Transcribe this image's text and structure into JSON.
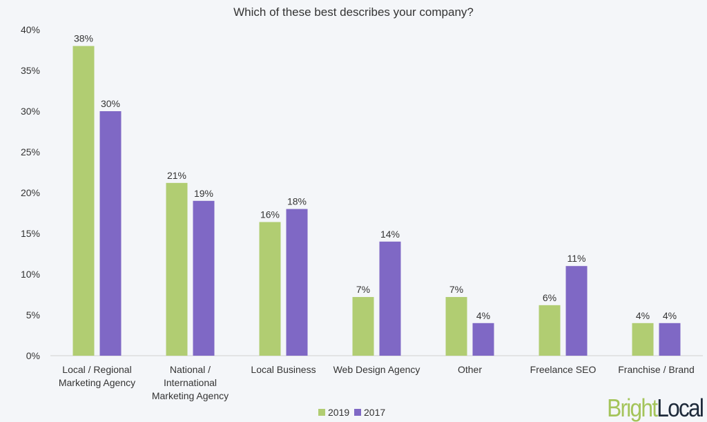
{
  "chart_data": {
    "type": "bar",
    "title": "Which of these best describes your company?",
    "categories": [
      [
        "Local / Regional",
        "Marketing Agency"
      ],
      [
        "National /",
        "International",
        "Marketing Agency"
      ],
      [
        "Local Business"
      ],
      [
        "Web Design Agency"
      ],
      [
        "Other"
      ],
      [
        "Freelance SEO"
      ],
      [
        "Franchise / Brand"
      ]
    ],
    "series": [
      {
        "name": "2019",
        "color": "#b1cd72",
        "values": [
          38,
          21.2,
          16.4,
          7.2,
          7.2,
          6.2,
          4
        ],
        "labels": [
          "38%",
          "21%",
          "16%",
          "7%",
          "7%",
          "6%",
          "4%"
        ]
      },
      {
        "name": "2017",
        "color": "#7f68c5",
        "values": [
          30,
          19,
          18,
          14,
          4,
          11,
          4
        ],
        "labels": [
          "30%",
          "19%",
          "18%",
          "14%",
          "4%",
          "11%",
          "4%"
        ]
      }
    ],
    "ylim": [
      0,
      40
    ],
    "yticks": [
      "0%",
      "5%",
      "10%",
      "15%",
      "20%",
      "25%",
      "30%",
      "35%",
      "40%"
    ],
    "grid": false,
    "legend": "bottom-center"
  },
  "logo": {
    "part1": "Bright",
    "part2": "Local",
    "color1": "#a4c45a",
    "color2": "#1e2a3a"
  }
}
